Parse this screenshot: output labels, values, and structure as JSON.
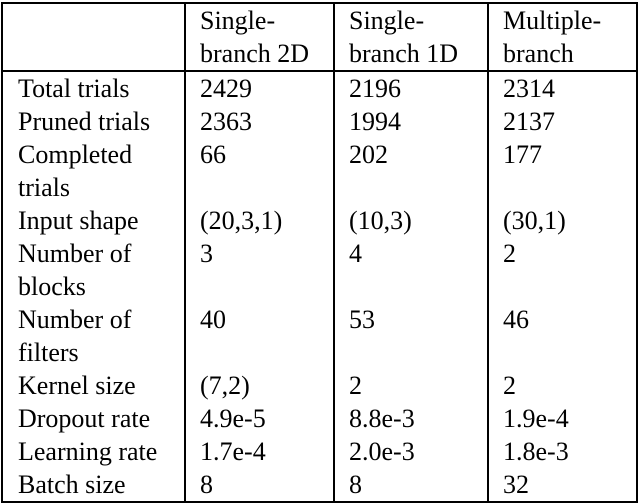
{
  "style": {
    "background_color": "#ffffff",
    "text_color": "#000000",
    "border_color": "#000000"
  },
  "table": {
    "header": {
      "corner": "",
      "cols": [
        {
          "line1": "Single-",
          "line2": "branch 2D"
        },
        {
          "line1": "Single-",
          "line2": "branch 1D"
        },
        {
          "line1": "Multiple-",
          "line2": "branch"
        }
      ]
    },
    "rows": [
      {
        "label": {
          "line1": "Total trials"
        },
        "values": [
          "2429",
          "2196",
          "2314"
        ]
      },
      {
        "label": {
          "line1": "Pruned trials"
        },
        "values": [
          "2363",
          "1994",
          "2137"
        ]
      },
      {
        "label": {
          "line1": "Completed",
          "line2": "trials"
        },
        "values": [
          "66",
          "202",
          "177"
        ]
      },
      {
        "label": {
          "line1": "Input shape"
        },
        "values": [
          "(20,3,1)",
          "(10,3)",
          "(30,1)"
        ]
      },
      {
        "label": {
          "line1_left": "Number",
          "line1_right": "of",
          "line2": "blocks"
        },
        "values": [
          "3",
          "4",
          "2"
        ]
      },
      {
        "label": {
          "line1_left": "Number",
          "line1_right": "of",
          "line2": "filters"
        },
        "values": [
          "40",
          "53",
          "46"
        ]
      },
      {
        "label": {
          "line1": "Kernel size"
        },
        "values": [
          "(7,2)",
          "2",
          "2"
        ]
      },
      {
        "label": {
          "line1": "Dropout rate"
        },
        "values": [
          "4.9e-5",
          "8.8e-3",
          "1.9e-4"
        ]
      },
      {
        "label": {
          "line1": "Learning rate"
        },
        "values": [
          "1.7e-4",
          "2.0e-3",
          "1.8e-3"
        ]
      },
      {
        "label": {
          "line1": "Batch size"
        },
        "values": [
          "8",
          "8",
          "32"
        ]
      }
    ]
  }
}
